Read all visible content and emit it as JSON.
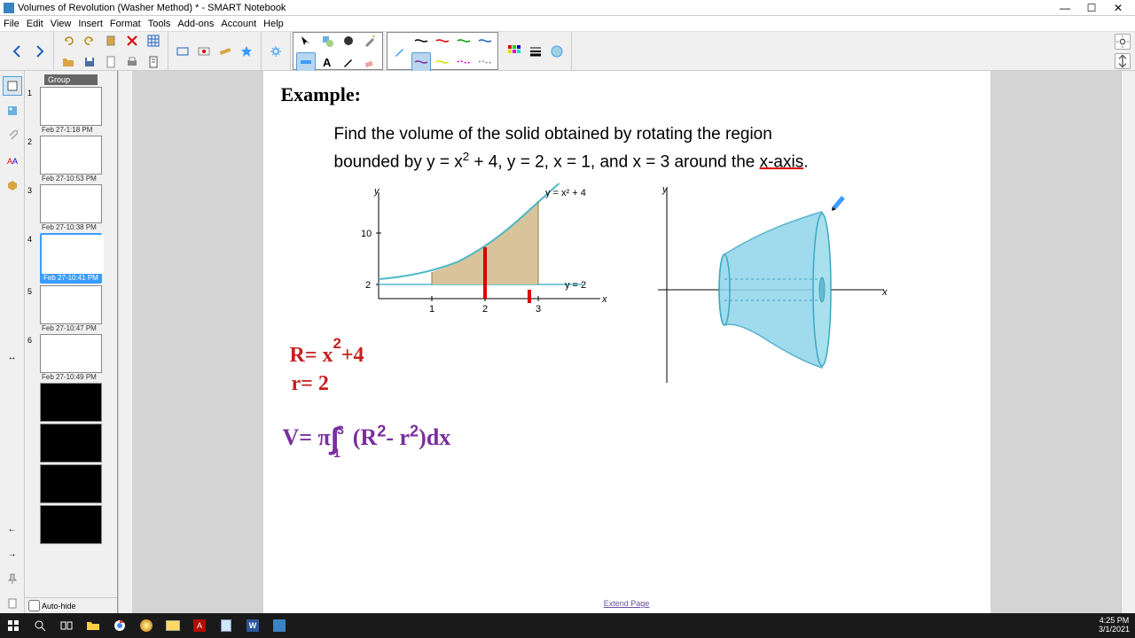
{
  "window": {
    "title": "Volumes of Revolution (Washer Method) * - SMART Notebook",
    "buttons": {
      "min": "—",
      "max": "☐",
      "close": "✕"
    }
  },
  "menu": [
    "File",
    "Edit",
    "View",
    "Insert",
    "Format",
    "Tools",
    "Add-ons",
    "Account",
    "Help"
  ],
  "thumbnails": {
    "group": "Group",
    "items": [
      {
        "num": "1",
        "ts": "Feb 27-1:18 PM",
        "black": false
      },
      {
        "num": "2",
        "ts": "Feb 27-10:53 PM",
        "black": false
      },
      {
        "num": "3",
        "ts": "Feb 27-10:38 PM",
        "black": false
      },
      {
        "num": "4",
        "ts": "Feb 27-10:41 PM",
        "black": false,
        "selected": true
      },
      {
        "num": "5",
        "ts": "Feb 27-10:47 PM",
        "black": false
      },
      {
        "num": "6",
        "ts": "Feb 27-10:49 PM",
        "black": false
      },
      {
        "num": "",
        "ts": "",
        "black": true
      },
      {
        "num": "",
        "ts": "",
        "black": true
      },
      {
        "num": "",
        "ts": "",
        "black": true
      },
      {
        "num": "",
        "ts": "",
        "black": true
      }
    ],
    "autohide": "Auto-hide"
  },
  "content": {
    "heading": "Example:",
    "problem_l1": "Find the volume of the solid obtained by rotating the region",
    "problem_l2a": "bounded by y = x",
    "problem_l2b": " + 4, y = 2, x = 1, and x = 3 around the ",
    "problem_l2c": "x-axis",
    "problem_l2d": ".",
    "graph1": {
      "curve_label": "y = x² + 4",
      "line_label": "y = 2",
      "y_label": "y",
      "x_label": "x",
      "yticks": [
        "2",
        "10"
      ],
      "xticks": [
        "1",
        "2",
        "3"
      ],
      "curve_color": "#4bb8c9",
      "region_color": "#d9c39a",
      "red_mark": "#d00"
    },
    "graph2": {
      "y_label": "y",
      "x_label": "x",
      "solid_fill": "#8fd4ea",
      "solid_stroke": "#3ba8c4"
    },
    "hw_R": "R= x²+4",
    "hw_r": "r= 2",
    "hw_V": "V= π∫₁³(R²-r²)dx",
    "extend": "Extend Page"
  },
  "taskbar": {
    "time": "4:25 PM",
    "date": "3/1/2021"
  },
  "colors": {
    "accent": "#3b9cff",
    "toolbar_bg": "#f0f0f0",
    "canvas_bg": "#d4d4d4"
  }
}
